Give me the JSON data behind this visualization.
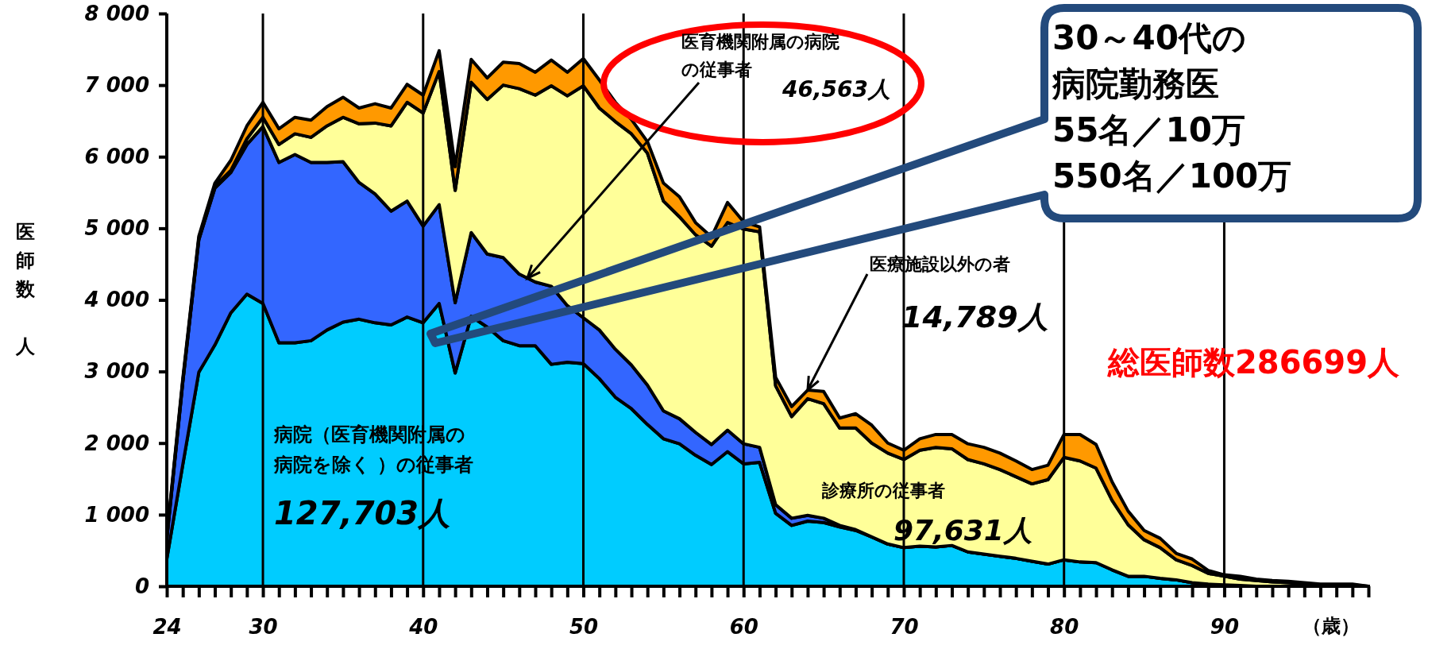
{
  "chart_data": {
    "type": "area",
    "stacked": true,
    "ylabel": "医師数人",
    "xlabel": "（歳）",
    "x": [
      24,
      25,
      26,
      27,
      28,
      29,
      30,
      31,
      32,
      33,
      34,
      35,
      36,
      37,
      38,
      39,
      40,
      41,
      42,
      43,
      44,
      45,
      46,
      47,
      48,
      49,
      50,
      51,
      52,
      53,
      54,
      55,
      56,
      57,
      58,
      59,
      60,
      61,
      62,
      63,
      64,
      65,
      66,
      67,
      68,
      69,
      70,
      71,
      72,
      73,
      74,
      75,
      76,
      77,
      78,
      79,
      80,
      81,
      82,
      83,
      84,
      85,
      86,
      87,
      88,
      89,
      90,
      91,
      92,
      93,
      94,
      95,
      96,
      97,
      98,
      99
    ],
    "series": [
      {
        "color": "#00ccff",
        "values": [
          380,
          1700,
          2990,
          3370,
          3820,
          4080,
          3950,
          3400,
          3400,
          3430,
          3580,
          3690,
          3730,
          3680,
          3650,
          3760,
          3680,
          3950,
          2980,
          3770,
          3620,
          3430,
          3360,
          3360,
          3100,
          3130,
          3110,
          2900,
          2640,
          2480,
          2260,
          2060,
          1990,
          1830,
          1700,
          1880,
          1710,
          1730,
          1020,
          850,
          910,
          890,
          830,
          780,
          690,
          590,
          540,
          560,
          550,
          570,
          480,
          450,
          420,
          390,
          350,
          310,
          370,
          340,
          330,
          230,
          140,
          140,
          110,
          90,
          50,
          30,
          20,
          10,
          0,
          0,
          0,
          0,
          0,
          0,
          0,
          0
        ]
      },
      {
        "color": "#3366ff",
        "values": [
          270,
          1150,
          1850,
          2190,
          1960,
          2090,
          2470,
          2520,
          2630,
          2490,
          2340,
          2240,
          1910,
          1800,
          1590,
          1620,
          1350,
          1380,
          980,
          1170,
          1020,
          1160,
          1000,
          890,
          1090,
          790,
          640,
          680,
          670,
          610,
          550,
          390,
          350,
          320,
          280,
          300,
          280,
          210,
          120,
          100,
          80,
          60,
          20,
          10,
          0,
          0,
          0,
          0,
          0,
          0,
          0,
          0,
          0,
          0,
          0,
          0,
          0,
          0,
          0,
          0,
          0,
          0,
          0,
          0,
          0,
          0,
          0,
          0,
          0,
          0,
          0,
          0,
          0,
          0,
          0,
          0
        ]
      },
      {
        "color": "#ffff99",
        "values": [
          30,
          20,
          20,
          30,
          30,
          80,
          130,
          250,
          290,
          350,
          510,
          620,
          820,
          990,
          1190,
          1380,
          1580,
          1860,
          1570,
          2100,
          2160,
          2410,
          2590,
          2610,
          2800,
          2930,
          3240,
          3100,
          3180,
          3230,
          3240,
          2930,
          2820,
          2760,
          2770,
          2900,
          3000,
          3010,
          1660,
          1420,
          1630,
          1600,
          1360,
          1420,
          1310,
          1270,
          1230,
          1340,
          1390,
          1350,
          1290,
          1260,
          1210,
          1140,
          1080,
          1180,
          1430,
          1410,
          1320,
          970,
          720,
          510,
          430,
          280,
          240,
          150,
          120,
          90,
          80,
          60,
          50,
          30,
          20,
          20,
          20,
          0
        ]
      },
      {
        "color": "#ff9900",
        "values": [
          20,
          30,
          30,
          40,
          140,
          180,
          210,
          220,
          230,
          240,
          270,
          280,
          220,
          270,
          250,
          250,
          250,
          290,
          330,
          320,
          300,
          320,
          350,
          320,
          360,
          330,
          380,
          390,
          270,
          200,
          160,
          250,
          280,
          170,
          130,
          280,
          100,
          70,
          120,
          140,
          120,
          170,
          140,
          200,
          250,
          140,
          130,
          160,
          180,
          200,
          220,
          230,
          230,
          220,
          200,
          200,
          320,
          370,
          330,
          260,
          190,
          130,
          130,
          90,
          90,
          40,
          20,
          40,
          20,
          20,
          20,
          20,
          10,
          10,
          10,
          0
        ]
      }
    ],
    "xlim": [
      24,
      99
    ],
    "xticks": [
      24,
      {
        "value": 25,
        "label": null
      },
      {
        "value": 26,
        "label": null
      },
      {
        "value": 27,
        "label": null
      },
      {
        "value": 28,
        "label": null
      },
      {
        "value": 29,
        "label": null
      },
      30,
      {
        "value": 31,
        "label": null
      },
      {
        "value": 32,
        "label": null
      },
      {
        "value": 33,
        "label": null
      },
      {
        "value": 34,
        "label": null
      },
      {
        "value": 35,
        "label": null
      },
      {
        "value": 36,
        "label": null
      },
      {
        "value": 37,
        "label": null
      },
      {
        "value": 38,
        "label": null
      },
      {
        "value": 39,
        "label": null
      },
      40,
      {
        "value": 41,
        "label": null
      },
      {
        "value": 42,
        "label": null
      },
      {
        "value": 43,
        "label": null
      },
      {
        "value": 44,
        "label": null
      },
      {
        "value": 45,
        "label": null
      },
      {
        "value": 46,
        "label": null
      },
      {
        "value": 47,
        "label": null
      },
      {
        "value": 48,
        "label": null
      },
      {
        "value": 49,
        "label": null
      },
      50,
      {
        "value": 51,
        "label": null
      },
      {
        "value": 52,
        "label": null
      },
      {
        "value": 53,
        "label": null
      },
      {
        "value": 54,
        "label": null
      },
      {
        "value": 55,
        "label": null
      },
      {
        "value": 56,
        "label": null
      },
      {
        "value": 57,
        "label": null
      },
      {
        "value": 58,
        "label": null
      },
      {
        "value": 59,
        "label": null
      },
      60,
      {
        "value": 61,
        "label": null
      },
      {
        "value": 62,
        "label": null
      },
      {
        "value": 63,
        "label": null
      },
      {
        "value": 64,
        "label": null
      },
      {
        "value": 65,
        "label": null
      },
      {
        "value": 66,
        "label": null
      },
      {
        "value": 67,
        "label": null
      },
      {
        "value": 68,
        "label": null
      },
      {
        "value": 69,
        "label": null
      },
      70,
      {
        "value": 71,
        "label": null
      },
      {
        "value": 72,
        "label": null
      },
      {
        "value": 73,
        "label": null
      },
      {
        "value": 74,
        "label": null
      },
      {
        "value": 75,
        "label": null
      },
      {
        "value": 76,
        "label": null
      },
      {
        "value": 77,
        "label": null
      },
      {
        "value": 78,
        "label": null
      },
      {
        "value": 79,
        "label": null
      },
      80,
      {
        "value": 81,
        "label": null
      },
      {
        "value": 82,
        "label": null
      },
      {
        "value": 83,
        "label": null
      },
      {
        "value": 84,
        "label": null
      },
      {
        "value": 85,
        "label": null
      },
      {
        "value": 86,
        "label": null
      },
      {
        "value": 87,
        "label": null
      },
      {
        "value": 88,
        "label": null
      },
      {
        "value": 89,
        "label": null
      },
      90,
      {
        "value": 91,
        "label": null
      },
      {
        "value": 92,
        "label": null
      },
      {
        "value": 93,
        "label": null
      },
      {
        "value": 94,
        "label": null
      },
      {
        "value": 95,
        "label": null
      },
      {
        "value": 96,
        "label": null
      },
      {
        "value": 97,
        "label": null
      },
      {
        "value": 98,
        "label": null
      },
      {
        "value": 99,
        "label": null
      }
    ],
    "ylim": [
      0,
      8000
    ],
    "yticks": [
      0,
      {
        "value": 1000,
        "label": "1 000"
      },
      {
        "value": 2000,
        "label": "2 000"
      },
      {
        "value": 3000,
        "label": "3 000"
      },
      {
        "value": 4000,
        "label": "4 000"
      },
      {
        "value": 5000,
        "label": "5 000"
      },
      {
        "value": 6000,
        "label": "6 000"
      },
      {
        "value": 7000,
        "label": "7 000"
      },
      {
        "value": 8000,
        "label": "8 000"
      }
    ],
    "grid": false,
    "ref_lines": [
      {
        "axis": "x",
        "value": 30,
        "color": "#000000"
      },
      {
        "axis": "x",
        "value": 40,
        "color": "#000000"
      },
      {
        "axis": "x",
        "value": 50,
        "color": "#000000"
      },
      {
        "axis": "x",
        "value": 60,
        "color": "#000000"
      },
      {
        "axis": "x",
        "value": 70,
        "color": "#000000"
      },
      {
        "axis": "x",
        "value": 80,
        "color": "#000000"
      },
      {
        "axis": "x",
        "value": 90,
        "color": "#000000"
      }
    ],
    "annotations": [
      {
        "text": "医育機関附属の病院の従事者",
        "x": 46.5,
        "y": 4300
      },
      "46,563人",
      "病院（医育機関附属の病院を除く ）の従事者",
      "127,703人",
      "診療所の従事者",
      "97,631人",
      {
        "text": "医療施設以外の者",
        "x": 64,
        "y": 2740
      },
      "14,789人",
      "30～40代の病院勤務医",
      "55名／10万",
      "550名／100万",
      "総医師数286699人"
    ]
  }
}
